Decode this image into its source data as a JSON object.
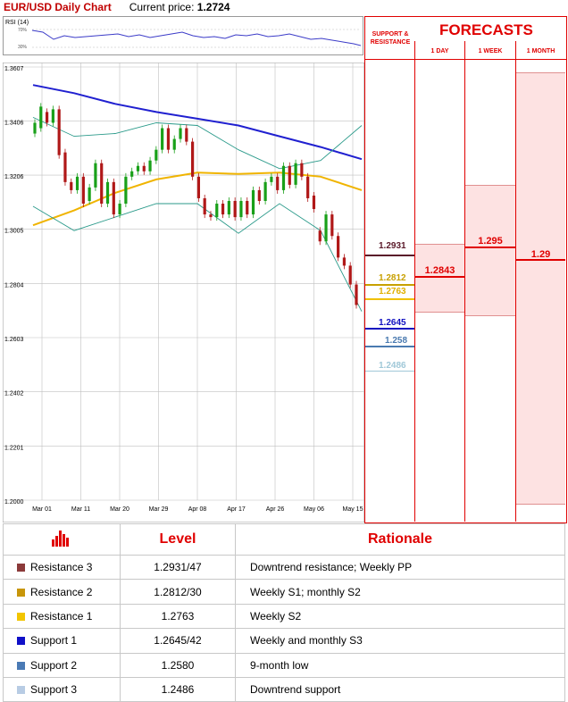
{
  "header": {
    "chart_title": "EUR/USD Daily Chart",
    "price_label": "Current price:",
    "price_value": "1.2724"
  },
  "rsi": {
    "label": "RSI (14)",
    "ticks": [
      "70%",
      "30%"
    ]
  },
  "forecasts": {
    "title": "FORECASTS",
    "sr_label": "SUPPORT & RESISTANCE",
    "columns": [
      {
        "label": "1 DAY",
        "value": "1.2843"
      },
      {
        "label": "1 WEEK",
        "value": "1.295"
      },
      {
        "label": "1 MONTH",
        "value": "1.29"
      }
    ]
  },
  "levels": [
    {
      "value": "1.2931",
      "color": "#5a1a2a"
    },
    {
      "value": "1.2812",
      "color": "#c8a000"
    },
    {
      "value": "1.2763",
      "color": "#f0c000"
    },
    {
      "value": "1.2645",
      "color": "#1010c0"
    },
    {
      "value": "1.258",
      "color": "#4a7ab0"
    },
    {
      "value": "1.2486",
      "color": "#a0c8d8"
    }
  ],
  "table": {
    "headers": [
      "Level",
      "Rationale"
    ],
    "rows": [
      {
        "name": "Resistance 3",
        "level": "1.2931/47",
        "rationale": "Downtrend resistance; Weekly PP",
        "color": "#8b3a3a"
      },
      {
        "name": "Resistance 2",
        "level": "1.2812/30",
        "rationale": "Weekly S1; monthly S2",
        "color": "#c8960a"
      },
      {
        "name": "Resistance 1",
        "level": "1.2763",
        "rationale": "Weekly S2",
        "color": "#f2c500"
      },
      {
        "name": "Support 1",
        "level": "1.2645/42",
        "rationale": "Weekly and monthly S3",
        "color": "#1010c8"
      },
      {
        "name": "Support 2",
        "level": "1.2580",
        "rationale": "9-month low",
        "color": "#4a7ab5"
      },
      {
        "name": "Support 3",
        "level": "1.2486",
        "rationale": "Downtrend support",
        "color": "#b8cce4"
      }
    ]
  },
  "chart_data": {
    "type": "line",
    "title": "EUR/USD Daily Chart",
    "y_ticks": [
      "1.3607",
      "1.3406",
      "1.3206",
      "1.3005",
      "1.2804",
      "1.2603",
      "1.2402",
      "1.2201",
      "1.2000"
    ],
    "ylim": [
      1.2,
      1.3607
    ],
    "x_ticks": [
      "Mar 01",
      "Mar 11",
      "Mar 20",
      "Mar 29",
      "Apr 08",
      "Apr 17",
      "Apr 26",
      "May 06",
      "May 15"
    ],
    "series": [
      {
        "color": "#2020d0",
        "y": [
          1.354,
          1.351,
          1.347,
          1.344,
          1.3415,
          1.339,
          1.335,
          1.331,
          1.3265
        ]
      },
      {
        "color": "#f0b400",
        "y": [
          1.302,
          1.3075,
          1.314,
          1.319,
          1.3215,
          1.321,
          1.3215,
          1.32,
          1.315
        ]
      },
      {
        "color": "#2a9a8a",
        "y": [
          1.342,
          1.335,
          1.336,
          1.34,
          1.339,
          1.33,
          1.323,
          1.326,
          1.339
        ]
      },
      {
        "color": "#2a9a8a",
        "y": [
          1.309,
          1.3,
          1.305,
          1.31,
          1.31,
          1.299,
          1.31,
          1.3,
          1.27
        ]
      }
    ],
    "candles": [
      [
        1.336,
        1.34
      ],
      [
        1.338,
        1.346
      ],
      [
        1.344,
        1.34
      ],
      [
        1.34,
        1.345
      ],
      [
        1.345,
        1.328
      ],
      [
        1.329,
        1.318
      ],
      [
        1.318,
        1.315
      ],
      [
        1.315,
        1.32
      ],
      [
        1.32,
        1.31
      ],
      [
        1.311,
        1.316
      ],
      [
        1.316,
        1.325
      ],
      [
        1.325,
        1.31
      ],
      [
        1.31,
        1.318
      ],
      [
        1.318,
        1.306
      ],
      [
        1.306,
        1.31
      ],
      [
        1.31,
        1.32
      ],
      [
        1.32,
        1.322
      ],
      [
        1.322,
        1.324
      ],
      [
        1.324,
        1.322
      ],
      [
        1.322,
        1.326
      ],
      [
        1.326,
        1.33
      ],
      [
        1.33,
        1.338
      ],
      [
        1.338,
        1.33
      ],
      [
        1.33,
        1.334
      ],
      [
        1.334,
        1.338
      ],
      [
        1.338,
        1.333
      ],
      [
        1.333,
        1.32
      ],
      [
        1.32,
        1.312
      ],
      [
        1.312,
        1.306
      ],
      [
        1.306,
        1.305
      ],
      [
        1.305,
        1.31
      ],
      [
        1.31,
        1.306
      ],
      [
        1.306,
        1.311
      ],
      [
        1.311,
        1.305
      ],
      [
        1.305,
        1.311
      ],
      [
        1.311,
        1.306
      ],
      [
        1.306,
        1.315
      ],
      [
        1.315,
        1.311
      ],
      [
        1.311,
        1.318
      ],
      [
        1.318,
        1.32
      ],
      [
        1.32,
        1.315
      ],
      [
        1.315,
        1.324
      ],
      [
        1.324,
        1.317
      ],
      [
        1.317,
        1.325
      ],
      [
        1.325,
        1.32
      ],
      [
        1.32,
        1.312
      ],
      [
        1.313,
        1.308
      ],
      [
        1.3,
        1.296
      ],
      [
        1.296,
        1.306
      ],
      [
        1.306,
        1.298
      ],
      [
        1.298,
        1.29
      ],
      [
        1.29,
        1.287
      ],
      [
        1.287,
        1.28
      ],
      [
        1.28,
        1.2724
      ]
    ]
  }
}
